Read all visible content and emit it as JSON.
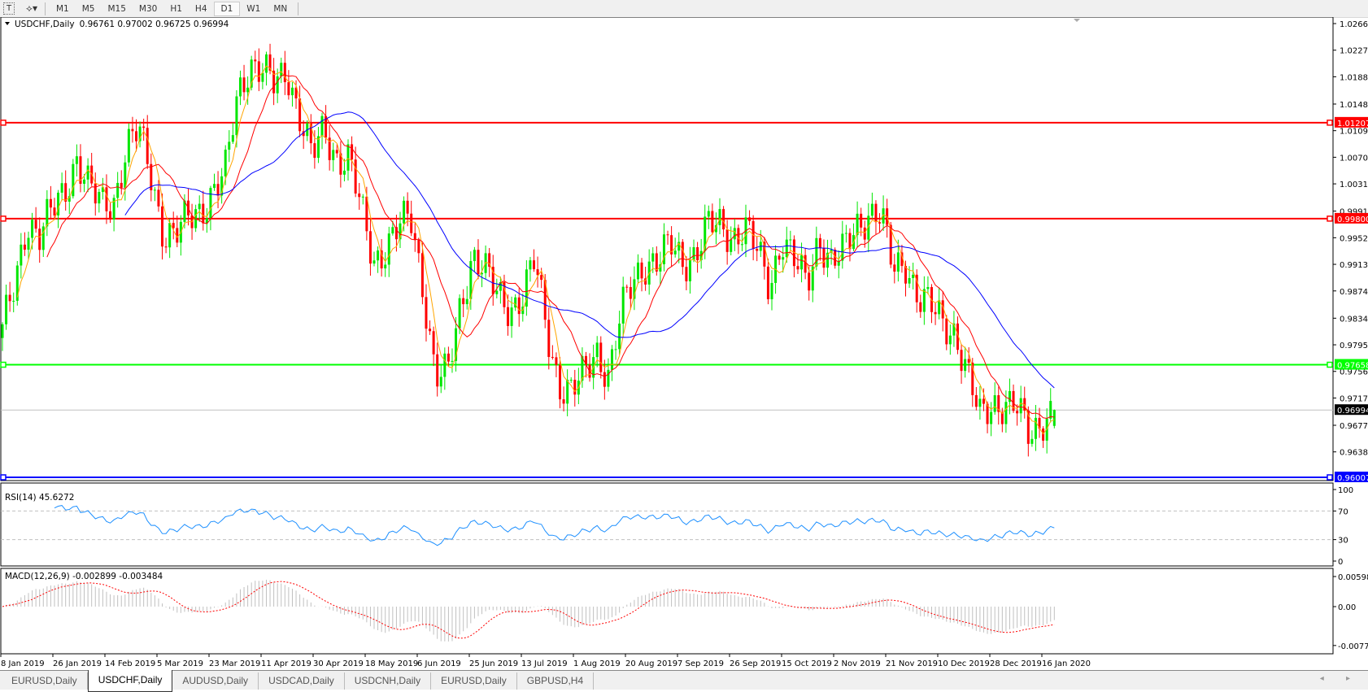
{
  "toolbar": {
    "text_tool_icon": "text-T-icon",
    "draw_tool_icon": "line-tools-icon",
    "timeframes": [
      "M1",
      "M5",
      "M15",
      "M30",
      "H1",
      "H4",
      "D1",
      "W1",
      "MN"
    ],
    "active_timeframe": "D1"
  },
  "chart_data": {
    "type": "candlestick",
    "title": "USDCHF,Daily",
    "ohlc_label": "0.96761 0.97002 0.96725 0.96994",
    "last_bar": {
      "open": 0.96761,
      "high": 0.97002,
      "low": 0.96725,
      "close": 0.96994
    },
    "bars_approx": 284,
    "close_path": [
      0.9815,
      0.988,
      0.998,
      0.9955,
      0.999,
      1.0019,
      1.007,
      1.0025,
      1.0,
      1.0006,
      1.0083,
      1.0109,
      1.0045,
      0.996,
      0.9955,
      0.998,
      0.9993,
      1.002,
      1.0045,
      1.016,
      1.021,
      1.0198,
      1.0173,
      1.0198,
      1.0134,
      1.007,
      1.0109,
      1.007,
      1.007,
      0.999,
      0.9917,
      0.994,
      0.9967,
      0.998,
      0.988,
      0.975,
      0.975,
      0.985,
      0.993,
      0.9903,
      0.9866,
      0.985,
      0.9866,
      0.9917,
      0.9815,
      0.9738,
      0.9725,
      0.975,
      0.9789,
      0.975,
      0.984,
      0.989,
      0.9917,
      0.9917,
      0.994,
      0.9917,
      0.993,
      0.9968,
      0.9968,
      0.9955,
      0.9968,
      0.993,
      0.988,
      0.9955,
      0.9917,
      0.988,
      0.9955,
      0.9917,
      0.993,
      0.9968,
      0.999,
      0.9985,
      0.9903,
      0.9917,
      0.9866,
      0.985,
      0.9827,
      0.9815,
      0.975,
      0.9687,
      0.971,
      0.971,
      0.97,
      0.9661,
      0.9687,
      0.96994
    ],
    "ylim": [
      0.9595,
      1.0275
    ],
    "y_ticks": [
      "1.02660",
      "1.02270",
      "1.01880",
      "1.01480",
      "1.01090",
      "1.00700",
      "1.00310",
      "0.99910",
      "0.99520",
      "0.99130",
      "0.98740",
      "0.98340",
      "0.97950",
      "0.97560",
      "0.97170",
      "0.96770",
      "0.96380"
    ],
    "x_ticks": [
      "8 Jan 2019",
      "26 Jan 2019",
      "14 Feb 2019",
      "5 Mar 2019",
      "23 Mar 2019",
      "11 Apr 2019",
      "30 Apr 2019",
      "18 May 2019",
      "6 Jun 2019",
      "25 Jun 2019",
      "13 Jul 2019",
      "1 Aug 2019",
      "20 Aug 2019",
      "7 Sep 2019",
      "26 Sep 2019",
      "15 Oct 2019",
      "2 Nov 2019",
      "21 Nov 2019",
      "10 Dec 2019",
      "28 Dec 2019",
      "16 Jan 2020"
    ],
    "current_price": {
      "value": 0.96994,
      "label": "0.96994",
      "color": "#000000"
    },
    "levels": [
      {
        "value": 1.01207,
        "label": "1.01207",
        "color": "#ff0000"
      },
      {
        "value": 0.998,
        "label": "0.99800",
        "color": "#ff0000"
      },
      {
        "value": 0.97658,
        "label": "0.97658",
        "color": "#00ff00"
      },
      {
        "value": 0.96007,
        "label": "0.96007",
        "color": "#0000ff"
      }
    ],
    "moving_averages": [
      {
        "color": "#ffa500"
      },
      {
        "color": "#ff0000"
      },
      {
        "color": "#0000ff"
      }
    ],
    "colors": {
      "bull": "#00e600",
      "bear": "#ff0000"
    },
    "rsi": {
      "label": "RSI(14) 45.6272",
      "y_ticks": [
        "100",
        "70",
        "30",
        "0"
      ],
      "levels": [
        70,
        30
      ],
      "color": "#1e90ff"
    },
    "macd": {
      "label": "MACD(12,26,9) -0.002899 -0.003484",
      "y_ticks": [
        "0.005986",
        "0.00",
        "-0.007737"
      ],
      "ylim": [
        -0.007737,
        0.005986
      ],
      "hist_color": "#c0c0c0",
      "signal_color": "#ff0000"
    }
  },
  "tabs": [
    {
      "label": "EURUSD,Daily",
      "active": false
    },
    {
      "label": "USDCHF,Daily",
      "active": true
    },
    {
      "label": "AUDUSD,Daily",
      "active": false
    },
    {
      "label": "USDCAD,Daily",
      "active": false
    },
    {
      "label": "USDCNH,Daily",
      "active": false
    },
    {
      "label": "EURUSD,Daily",
      "active": false
    },
    {
      "label": "GBPUSD,H4",
      "active": false
    }
  ],
  "scroll_arrows": "◂ ▸"
}
